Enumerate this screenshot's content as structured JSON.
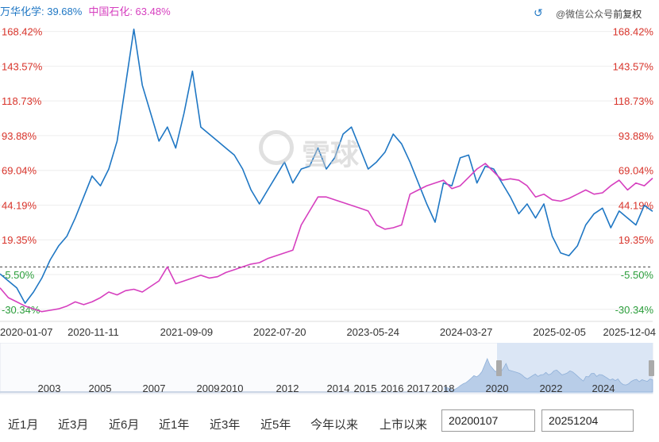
{
  "legend": {
    "series1": "万华化学: 39.68%",
    "series2": "中国石化: 63.48%"
  },
  "toolbar": {
    "adjust_label": "前复权",
    "undo_icon": "undo-icon",
    "watermark_text": "@微信公众号"
  },
  "watermark": {
    "text": "雪球"
  },
  "ranges": [
    "近1月",
    "近3月",
    "近6月",
    "近1年",
    "近3年",
    "近5年",
    "今年以来",
    "上市以来"
  ],
  "date_inputs": {
    "start": "20200107",
    "end": "20251204"
  },
  "colors": {
    "series1": "#1f77c4",
    "series2": "#d63fbf",
    "positive": "#d9342b",
    "negative": "#2a9d3a",
    "axis_text": "#333333"
  },
  "chart_data": {
    "type": "line",
    "y_ticks": [
      168.42,
      143.57,
      118.73,
      93.88,
      69.04,
      44.19,
      19.35,
      -5.5,
      -30.34
    ],
    "y_tick_labels": [
      "168.42%",
      "143.57%",
      "118.73%",
      "93.88%",
      "69.04%",
      "44.19%",
      "19.35%",
      "-5.50%",
      "-30.34%"
    ],
    "ylim": [
      -35,
      175
    ],
    "baseline": 0,
    "x_tick_labels": [
      "2020-01-07",
      "2020-11-11",
      "2021-09-09",
      "2022-07-20",
      "2023-05-24",
      "2024-03-27",
      "2025-02-05",
      "2025-12-04"
    ],
    "series": [
      {
        "name": "万华化学",
        "values": [
          -5,
          -10,
          -15,
          -26,
          -18,
          -8,
          5,
          15,
          22,
          35,
          50,
          65,
          58,
          70,
          90,
          130,
          170,
          130,
          110,
          90,
          100,
          85,
          110,
          140,
          100,
          95,
          90,
          85,
          80,
          70,
          55,
          45,
          55,
          65,
          75,
          60,
          70,
          72,
          85,
          70,
          78,
          95,
          100,
          85,
          70,
          75,
          82,
          95,
          88,
          75,
          60,
          45,
          32,
          60,
          58,
          78,
          80,
          60,
          72,
          70,
          60,
          50,
          38,
          45,
          35,
          45,
          22,
          10,
          8,
          15,
          30,
          38,
          42,
          28,
          40,
          35,
          30,
          44,
          39.68
        ]
      },
      {
        "name": "中国石化",
        "values": [
          -15,
          -22,
          -25,
          -28,
          -30,
          -32,
          -31,
          -30,
          -28,
          -25,
          -27,
          -25,
          -22,
          -18,
          -20,
          -17,
          -16,
          -18,
          -14,
          -10,
          0,
          -12,
          -10,
          -8,
          -6,
          -8,
          -7,
          -4,
          -2,
          0,
          2,
          3,
          6,
          8,
          10,
          12,
          30,
          40,
          50,
          50,
          48,
          46,
          44,
          42,
          40,
          30,
          27,
          28,
          30,
          52,
          55,
          58,
          60,
          62,
          56,
          58,
          64,
          70,
          74,
          68,
          62,
          63,
          62,
          58,
          50,
          52,
          48,
          47,
          49,
          52,
          55,
          52,
          53,
          58,
          62,
          55,
          60,
          58,
          63.48
        ]
      }
    ],
    "navigator": {
      "x_labels": [
        "2003",
        "2005",
        "2007",
        "2009",
        "2010",
        "2012",
        "2014",
        "2015",
        "2016",
        "2017",
        "2018",
        "2020",
        "2022",
        "2024"
      ]
    }
  }
}
